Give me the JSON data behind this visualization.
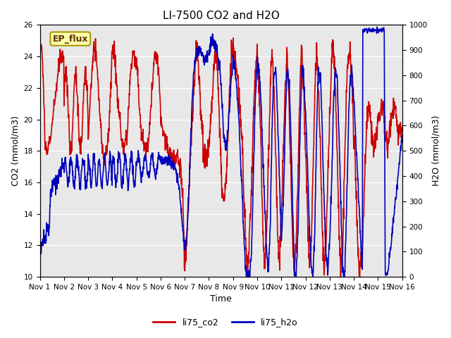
{
  "title": "LI-7500 CO2 and H2O",
  "xlabel": "Time",
  "ylabel_left": "CO2 (mmol/m3)",
  "ylabel_right": "H2O (mmol/m3)",
  "ylim_left": [
    10,
    26
  ],
  "ylim_right": [
    0,
    1000
  ],
  "yticks_left": [
    10,
    12,
    14,
    16,
    18,
    20,
    22,
    24,
    26
  ],
  "yticks_right": [
    0,
    100,
    200,
    300,
    400,
    500,
    600,
    700,
    800,
    900,
    1000
  ],
  "xtick_labels": [
    "Nov 1",
    "Nov 2",
    "Nov 3",
    "Nov 4",
    "Nov 5",
    "Nov 6",
    "Nov 7",
    "Nov 8",
    "Nov 9",
    "Nov 10",
    "Nov 11",
    "Nov 12",
    "Nov 13",
    "Nov 14",
    "Nov 15",
    "Nov 16"
  ],
  "color_co2": "#cc0000",
  "color_h2o": "#0000bb",
  "legend_label_co2": "li75_co2",
  "legend_label_h2o": "li75_h2o",
  "annotation_text": "EP_flux",
  "background_color": "#e8e8e8",
  "title_fontsize": 11,
  "axis_label_fontsize": 9,
  "tick_fontsize": 7.5,
  "legend_fontsize": 9,
  "linewidth": 1.2
}
